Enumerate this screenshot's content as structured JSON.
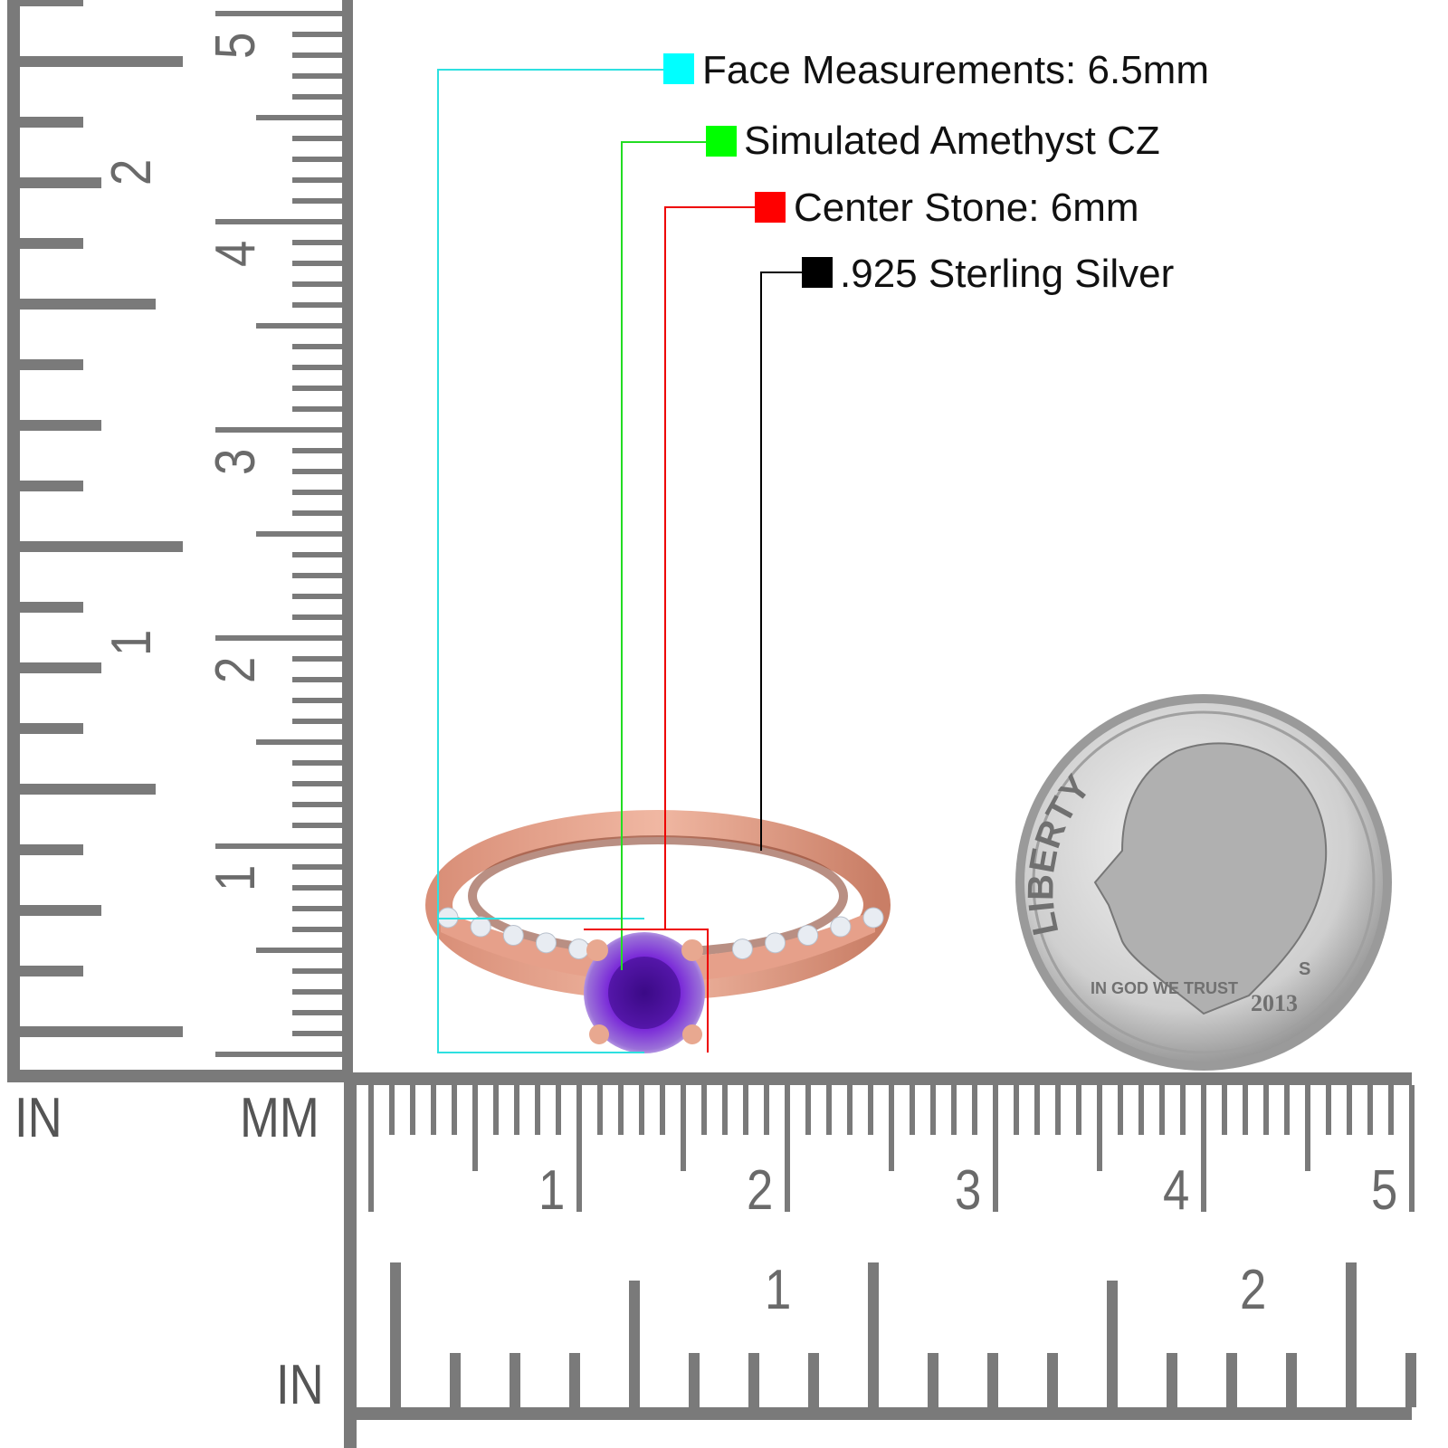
{
  "callouts": [
    {
      "label": "Face Measurements: 6.5mm",
      "color": "#00ffff"
    },
    {
      "label": "Simulated Amethyst CZ",
      "color": "#00ff00"
    },
    {
      "label": "Center Stone: 6mm",
      "color": "#ff0000"
    },
    {
      "label": ".925 Sterling Silver",
      "color": "#000000"
    }
  ],
  "rulers": {
    "vertical": {
      "inch_unit": "IN",
      "mm_unit": "MM",
      "inch_labels": [
        "1",
        "2"
      ],
      "cm_labels": [
        "1",
        "2",
        "3",
        "4",
        "5"
      ]
    },
    "horizontal": {
      "inch_unit": "IN",
      "cm_labels": [
        "1",
        "2",
        "3",
        "4",
        "5"
      ],
      "inch_labels": [
        "1",
        "2"
      ]
    },
    "color": "#7a7a7a"
  },
  "coin": {
    "legend": "LIBERTY",
    "motto": "IN GOD WE TRUST",
    "year": "2013",
    "mint_mark": "S"
  },
  "product": {
    "metal_color": "#e6a08a",
    "stone_color": "#6a1fc0"
  }
}
